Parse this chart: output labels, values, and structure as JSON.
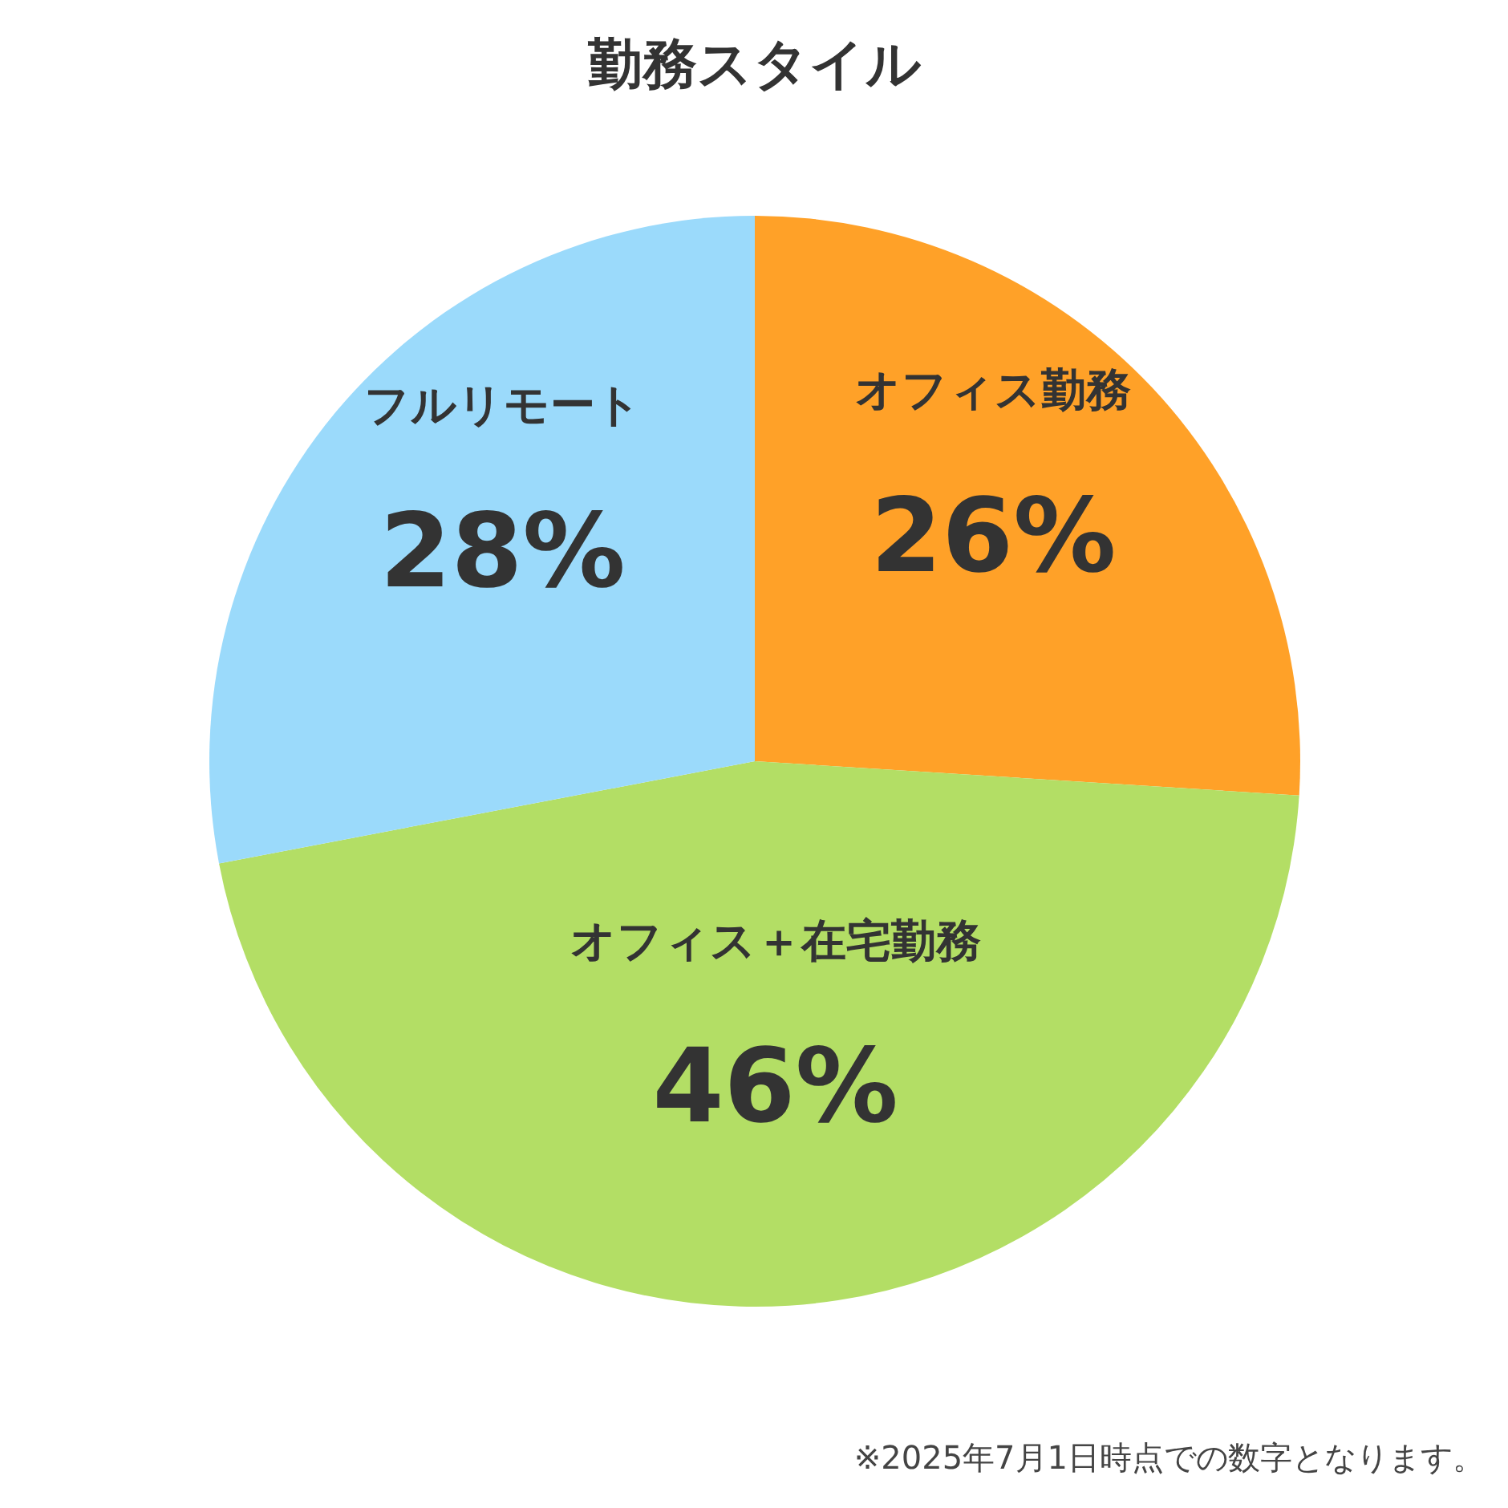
{
  "chart_data": {
    "type": "pie",
    "title": "勤務スタイル",
    "categories": [
      "オフィス勤務",
      "オフィス＋在宅勤務",
      "フルリモート"
    ],
    "values": [
      26,
      46,
      28
    ],
    "colors": [
      "#ffa128",
      "#b3de65",
      "#9bdafb"
    ],
    "value_labels": [
      "26%",
      "46%",
      "28%"
    ],
    "annotations": [
      "※2025年7月1日時点での数字となります。"
    ]
  }
}
